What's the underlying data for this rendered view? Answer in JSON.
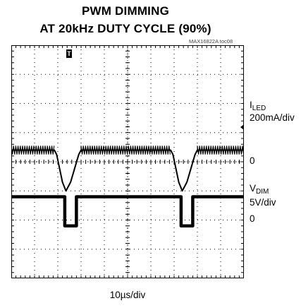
{
  "figure": {
    "title_line1": "PWM DIMMING",
    "title_line2": "AT 20kHz DUTY CYCLE (90%)",
    "doc_id": "MAX16822A toc08",
    "trigger_marker": "T"
  },
  "chart_data": {
    "type": "line",
    "title": "PWM DIMMING AT 20kHz DUTY CYCLE (90%)",
    "xlabel": "10µs/div",
    "x_divisions": 10,
    "y_divisions": 8,
    "grid": true,
    "xlim": [
      0,
      100
    ],
    "x_units": "µs",
    "series": [
      {
        "name": "ILED",
        "label_main": "I",
        "label_sub": "LED",
        "scale": "200mA/div",
        "zero_label": "0",
        "units": "mA",
        "x": [
          0,
          18.5,
          19.5,
          22.0,
          23.5,
          25.5,
          29.0,
          30.0,
          68.5,
          69.5,
          72.0,
          73.5,
          75.5,
          79.0,
          80.0,
          100
        ],
        "y": [
          280,
          280,
          250,
          60,
          0,
          60,
          250,
          280,
          280,
          250,
          60,
          0,
          60,
          250,
          280,
          280
        ],
        "ripple_pk_pk_mA": 60
      },
      {
        "name": "VDIM",
        "label_main": "V",
        "label_sub": "DIM",
        "scale": "5V/div",
        "zero_label": "0",
        "units": "V",
        "x": [
          0,
          23.0,
          23.0,
          28.0,
          28.0,
          73.0,
          73.0,
          78.0,
          78.0,
          100
        ],
        "y": [
          5,
          5,
          0,
          0,
          5,
          5,
          0,
          0,
          5,
          5
        ]
      }
    ]
  }
}
